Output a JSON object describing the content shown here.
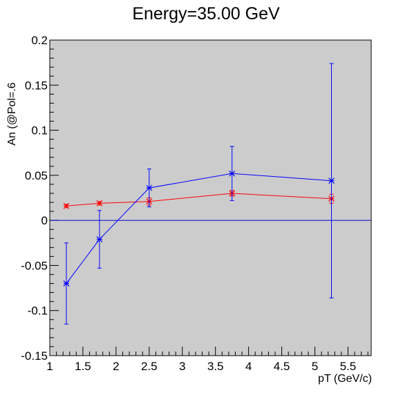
{
  "chart_data": {
    "type": "scatter",
    "title": "Energy=35.00 GeV",
    "xlabel": "pT (GeV/c)",
    "ylabel": "An (@Pol=.6",
    "xlim": [
      1,
      5.85
    ],
    "ylim": [
      -0.15,
      0.2
    ],
    "x_major_ticks": [
      1,
      1.5,
      2,
      2.5,
      3,
      3.5,
      4,
      4.5,
      5,
      5.5
    ],
    "x_tick_labels": [
      "1",
      "1.5",
      "2",
      "2.5",
      "3",
      "3.5",
      "4",
      "4.5",
      "5",
      "5.5"
    ],
    "y_major_ticks": [
      -0.15,
      -0.1,
      -0.05,
      0,
      0.05,
      0.1,
      0.15,
      0.2
    ],
    "y_tick_labels": [
      "-0.15",
      "-0.1",
      "-0.05",
      "0",
      "0.05",
      "0.1",
      "0.15",
      "0.2"
    ],
    "reference_line_y": 0,
    "grid": false,
    "plot_background": "#cccccc",
    "series": [
      {
        "color": "#ff0000",
        "marker": "star",
        "x": [
          1.25,
          1.75,
          2.5,
          3.75,
          5.25
        ],
        "y": [
          0.016,
          0.019,
          0.021,
          0.03,
          0.024
        ],
        "yerr": [
          0.002,
          0.002,
          0.004,
          0.003,
          0.005
        ]
      },
      {
        "color": "#0000ff",
        "marker": "star",
        "x": [
          1.25,
          1.75,
          2.5,
          3.75,
          5.25
        ],
        "y": [
          -0.07,
          -0.021,
          0.036,
          0.052,
          0.044
        ],
        "yerr": [
          0.045,
          0.032,
          0.021,
          0.03,
          0.13
        ]
      }
    ]
  }
}
